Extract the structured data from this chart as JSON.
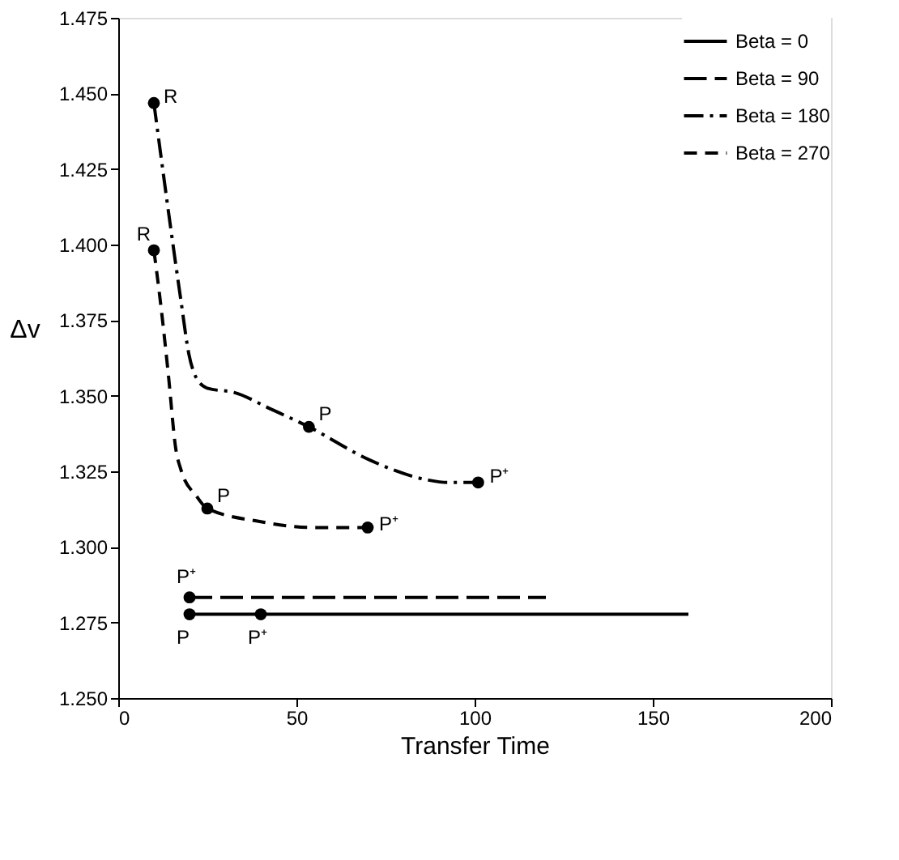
{
  "chart_data": {
    "type": "line",
    "xlabel": "Transfer Time",
    "ylabel": "Δv",
    "xlim": [
      0,
      200
    ],
    "xticks": [
      0,
      50,
      100,
      150,
      200
    ],
    "ylim": [
      1.25,
      1.475
    ],
    "yticks": [
      {
        "value": 1.25,
        "label": "1.250"
      },
      {
        "value": 1.275,
        "label": "1.275"
      },
      {
        "value": 1.3,
        "label": "1.300"
      },
      {
        "value": 1.325,
        "label": "1.325"
      },
      {
        "value": 1.35,
        "label": "1.350"
      },
      {
        "value": 1.375,
        "label": "1.375"
      },
      {
        "value": 1.4,
        "label": "1.400"
      },
      {
        "value": 1.425,
        "label": "1.425"
      },
      {
        "value": 1.45,
        "label": "1.450"
      },
      {
        "value": 1.475,
        "label": "1.475"
      }
    ],
    "grid": false,
    "legend": "top right",
    "marker": "none",
    "series": [
      {
        "name": "Beta = 0",
        "color": "#000000",
        "line_style": "solid",
        "x": [
          20,
          40,
          160
        ],
        "values": [
          1.2777,
          1.2777,
          1.2777
        ]
      },
      {
        "name": "Beta = 90",
        "color": "#000000",
        "line_style": "longdash",
        "x": [
          20,
          120
        ],
        "values": [
          1.2833,
          1.2833
        ]
      },
      {
        "name": "Beta = 180",
        "color": "#000000",
        "line_style": "dashdot",
        "x": [
          10,
          17.6,
          19.8,
          21.9,
          25.2,
          32.5,
          42.8,
          53.5,
          70.6,
          86.6,
          92.4,
          101
        ],
        "values": [
          1.4468,
          1.3814,
          1.3639,
          1.3559,
          1.3524,
          1.3511,
          1.3456,
          1.3397,
          1.3287,
          1.3222,
          1.3213,
          1.3213
        ]
      },
      {
        "name": "Beta = 270",
        "color": "#000000",
        "line_style": "dashed",
        "x": [
          10,
          11.8,
          14,
          16.2,
          17.6,
          22,
          25,
          39.7,
          54.3,
          70
        ],
        "values": [
          1.3981,
          1.3814,
          1.3577,
          1.332,
          1.3255,
          1.3167,
          1.3127,
          1.3084,
          1.3064,
          1.3064
        ]
      },
      {
        "type": "scatter",
        "marker": "circle",
        "color": "#000000",
        "x": [
          10,
          10,
          53.5,
          101,
          25,
          70,
          20,
          20,
          40
        ],
        "values": [
          1.4468,
          1.3981,
          1.3397,
          1.3213,
          1.3127,
          1.3064,
          1.2833,
          1.2777,
          1.2777
        ]
      }
    ],
    "annotations": [
      {
        "text": "R",
        "x": 10,
        "y": 1.4468
      },
      {
        "text": "R",
        "x": 10,
        "y": 1.3981
      },
      {
        "text": "P",
        "x": 53.5,
        "y": 1.3397
      },
      {
        "text": "P⁺",
        "x": 101,
        "y": 1.3213
      },
      {
        "text": "P",
        "x": 25,
        "y": 1.3127
      },
      {
        "text": "P⁺",
        "x": 70,
        "y": 1.3064
      },
      {
        "text": "P⁺",
        "x": 20,
        "y": 1.2833
      },
      {
        "text": "P",
        "x": 20,
        "y": 1.2777
      },
      {
        "text": "P⁺",
        "x": 40,
        "y": 1.2777
      }
    ]
  }
}
